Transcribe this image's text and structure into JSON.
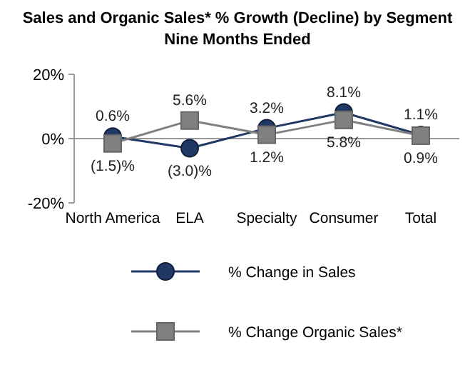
{
  "chart_data": {
    "type": "line",
    "title": "Sales and Organic Sales* % Growth (Decline) by Segment",
    "subtitle": "Nine Months Ended",
    "categories": [
      "North America",
      "ELA",
      "Specialty",
      "Consumer",
      "Total"
    ],
    "series": [
      {
        "name": "% Change in Sales",
        "color": "#1f3864",
        "marker": "circle",
        "values": [
          0.6,
          -3.0,
          3.2,
          8.1,
          1.1
        ],
        "value_labels": [
          "0.6%",
          "(3.0)%",
          "3.2%",
          "8.1%",
          "1.1%"
        ]
      },
      {
        "name": "% Change Organic Sales*",
        "color": "#808080",
        "marker": "square",
        "values": [
          -1.5,
          5.6,
          1.2,
          5.8,
          0.9
        ],
        "value_labels": [
          "(1.5)%",
          "5.6%",
          "1.2%",
          "5.8%",
          "0.9%"
        ]
      }
    ],
    "ylim": [
      -20,
      20
    ],
    "yticks": [
      {
        "value": -20,
        "label": "-20%"
      },
      {
        "value": 0,
        "label": "0%"
      },
      {
        "value": 20,
        "label": "20%"
      }
    ],
    "legend": "bottom"
  }
}
